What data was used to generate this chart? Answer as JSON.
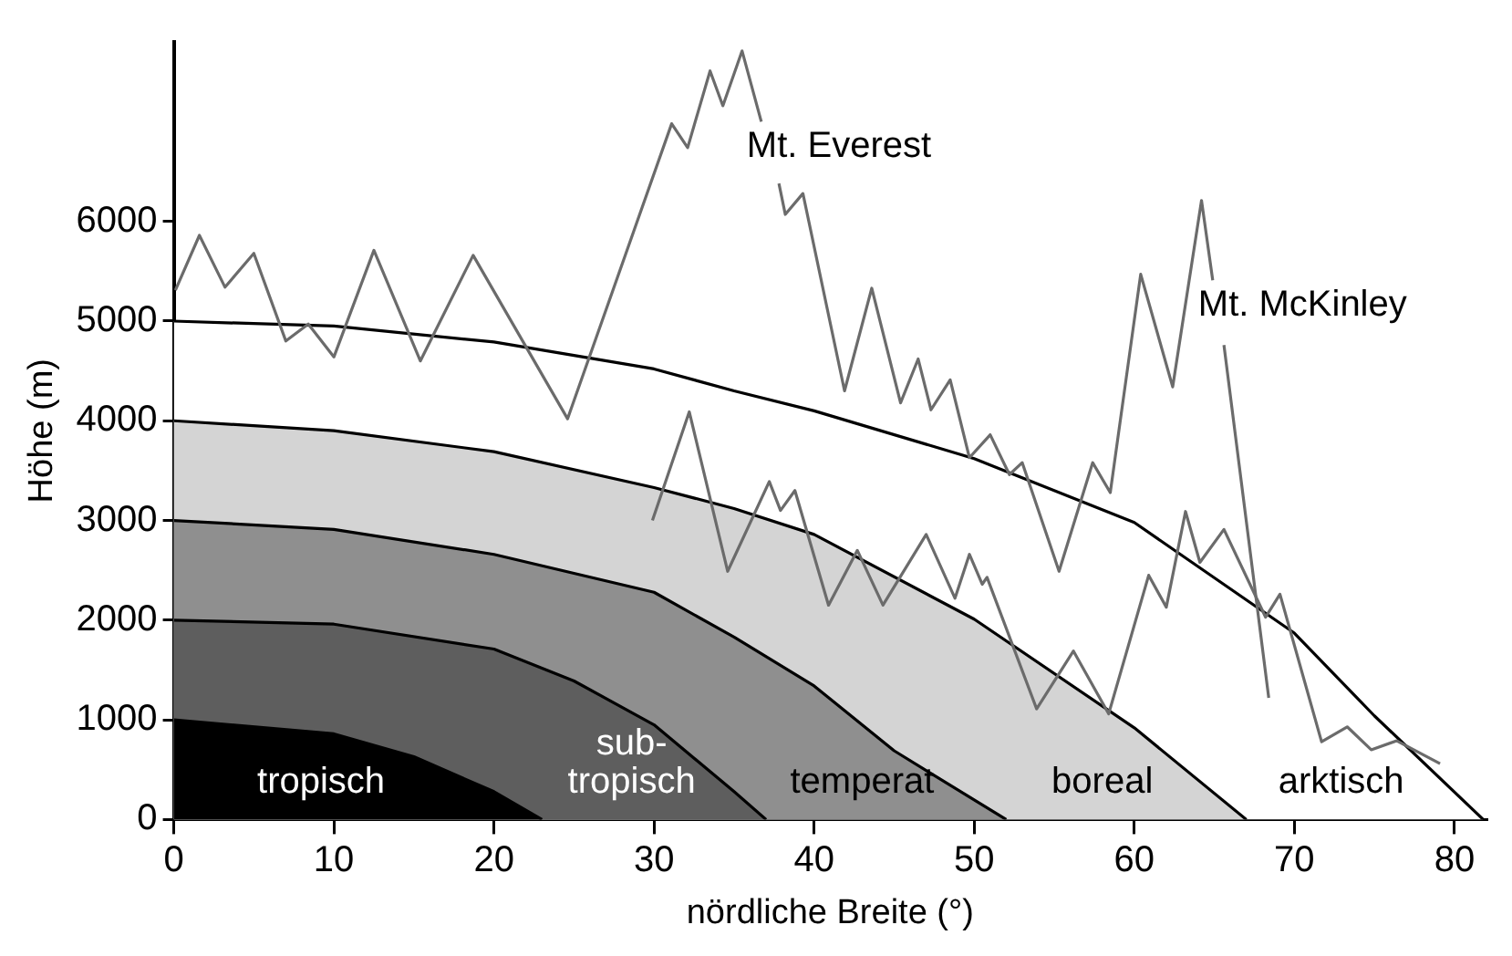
{
  "chart_data": {
    "type": "line",
    "xlabel": "nördliche Breite (°)",
    "ylabel": "Höhe (m)",
    "xlim": [
      0,
      82
    ],
    "xticks": [
      0,
      10,
      20,
      30,
      40,
      50,
      60,
      70,
      80
    ],
    "ylim": [
      0,
      7800
    ],
    "yticks": [
      0,
      1000,
      2000,
      3000,
      4000,
      5000,
      6000
    ],
    "grid": false,
    "legend": false,
    "marker": "none",
    "line_style": "solid",
    "series": [
      {
        "type": "area",
        "color": "#ffffff",
        "x": [
          0,
          10,
          20,
          30,
          35,
          40,
          50,
          60,
          70,
          75,
          81.8
        ],
        "values": [
          5000,
          4950,
          4790,
          4520,
          4300,
          4100,
          3620,
          2980,
          1870,
          1040,
          0
        ]
      },
      {
        "type": "area",
        "color": "#d4d4d4",
        "x": [
          0,
          10,
          20,
          30,
          35,
          40,
          50,
          60,
          67
        ],
        "values": [
          4000,
          3900,
          3690,
          3330,
          3120,
          2860,
          2010,
          920,
          0
        ]
      },
      {
        "type": "area",
        "color": "#8f8f8f",
        "x": [
          0,
          10,
          20,
          30,
          35,
          40,
          45,
          52
        ],
        "values": [
          3000,
          2910,
          2660,
          2280,
          1830,
          1340,
          690,
          0
        ]
      },
      {
        "type": "area",
        "color": "#5e5e5e",
        "x": [
          0,
          10,
          20,
          25,
          30,
          35,
          37
        ],
        "values": [
          2000,
          1960,
          1710,
          1390,
          950,
          280,
          0
        ]
      },
      {
        "type": "area",
        "color": "#000000",
        "x": [
          0,
          10,
          15,
          20,
          23
        ],
        "values": [
          1000,
          860,
          630,
          280,
          0
        ]
      },
      {
        "color": "#6b6b6b",
        "x": [
          0.1,
          1.6,
          3.2,
          5.0,
          7.0,
          8.4,
          10,
          12.5,
          15.4,
          18.7,
          24.6,
          31.1,
          32.1,
          33.5,
          34.3,
          35.5,
          36.7,
          37.2,
          37.8,
          38.2,
          39.3,
          41.9,
          43.6,
          45.4,
          46.5,
          47.3,
          48.5,
          49.7,
          51.0,
          52.2,
          53.0,
          55.3,
          57.4,
          58.5,
          60.4,
          62.4,
          64.2,
          64.9,
          65.2,
          65.6,
          68.4
        ],
        "values": [
          5310,
          5860,
          5340,
          5680,
          4800,
          4970,
          4640,
          5710,
          4600,
          5660,
          4020,
          6980,
          6740,
          7510,
          7160,
          7710,
          7000,
          null,
          6380,
          6070,
          6280,
          4300,
          5330,
          4180,
          4620,
          4110,
          4410,
          3630,
          3860,
          3460,
          3580,
          2490,
          3580,
          3280,
          5470,
          4340,
          6210,
          5410,
          null,
          4760,
          1220
        ]
      },
      {
        "color": "#6b6b6b",
        "x": [
          29.9,
          32.2,
          34.6,
          37.2,
          37.9,
          38.8,
          40.9,
          42.7,
          44.3,
          47.0,
          48.8,
          49.7,
          50.5,
          50.8,
          53.9,
          56.2,
          58.4,
          60.9,
          62.0,
          63.2,
          64.1,
          65.6,
          68.2,
          69.1,
          71.7,
          73.3,
          74.8,
          76.4,
          79.1
        ],
        "values": [
          3000,
          4090,
          2490,
          3390,
          3100,
          3300,
          2150,
          2700,
          2150,
          2860,
          2220,
          2660,
          2360,
          2430,
          1110,
          1690,
          1060,
          2450,
          2130,
          3090,
          2580,
          2910,
          2030,
          2260,
          780,
          930,
          700,
          790,
          560
        ]
      }
    ],
    "annotations": [
      "tropisch",
      "sub-\ntropisch",
      "temperat",
      "boreal",
      "arktisch",
      {
        "text": "Mt. Everest",
        "x": 36.7,
        "y": 7000
      },
      {
        "text": "Mt. McKinley",
        "x": 64.9,
        "y": 5410
      }
    ]
  }
}
